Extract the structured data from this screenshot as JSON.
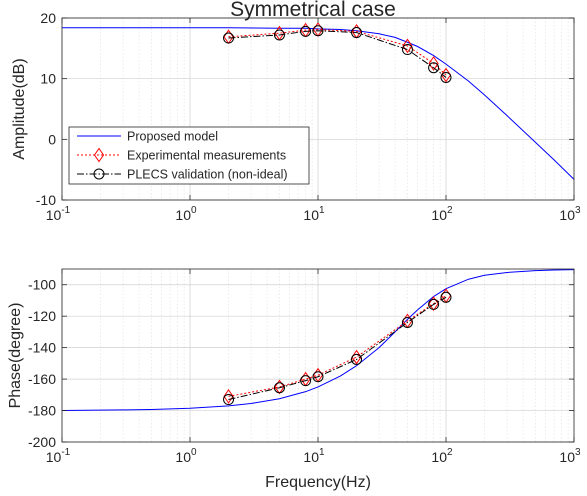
{
  "chart_data": [
    {
      "type": "line",
      "title": "Symmetrical case",
      "xlabel": "",
      "ylabel": "Amplitude(dB)",
      "xscale": "log",
      "xlim": [
        0.1,
        1000
      ],
      "ylim": [
        -10,
        20
      ],
      "grid": true,
      "legend_position": "left",
      "x_tick_labels": [
        [
          "10",
          "-1"
        ],
        [
          "10",
          "0"
        ],
        [
          "10",
          "1"
        ],
        [
          "10",
          "2"
        ],
        [
          "10",
          "3"
        ]
      ],
      "y_ticks": [
        "-10",
        "0",
        "10",
        "20"
      ],
      "series": [
        {
          "name": "Proposed model",
          "color": "#0000ff",
          "style": "solid",
          "x": [
            0.1,
            0.3,
            1,
            2,
            5,
            8,
            10,
            15,
            20,
            30,
            40,
            50,
            60,
            80,
            100,
            150,
            200,
            300,
            500,
            700,
            1000
          ],
          "y": [
            18.4,
            18.4,
            18.4,
            18.4,
            18.3,
            18.3,
            18.2,
            18.1,
            17.9,
            17.4,
            16.8,
            16.0,
            15.3,
            13.8,
            12.4,
            9.6,
            7.3,
            3.9,
            -0.5,
            -3.4,
            -6.6
          ]
        },
        {
          "name": "Experimental measurements",
          "color": "#ff0000",
          "style": "dotted",
          "marker": "diamond",
          "x": [
            2,
            5,
            8,
            10,
            20,
            50,
            80,
            100
          ],
          "y": [
            16.9,
            17.5,
            18.0,
            18.1,
            17.8,
            15.4,
            12.5,
            10.6
          ]
        },
        {
          "name": "PLECS validation (non-ideal)",
          "color": "#000000",
          "style": "dashdot",
          "marker": "circle",
          "x": [
            2,
            5,
            8,
            10,
            20,
            50,
            80,
            100
          ],
          "y": [
            16.7,
            17.2,
            17.8,
            17.9,
            17.6,
            14.8,
            11.8,
            10.2
          ]
        }
      ]
    },
    {
      "type": "line",
      "title": "",
      "xlabel": "Frequency(Hz)",
      "ylabel": "Phase(degree)",
      "xscale": "log",
      "xlim": [
        0.1,
        1000
      ],
      "ylim": [
        -200,
        -90
      ],
      "grid": true,
      "x_tick_labels": [
        [
          "10",
          "-1"
        ],
        [
          "10",
          "0"
        ],
        [
          "10",
          "1"
        ],
        [
          "10",
          "2"
        ],
        [
          "10",
          "3"
        ]
      ],
      "y_ticks": [
        "-200",
        "-180",
        "-160",
        "-140",
        "-120",
        "-100"
      ],
      "series": [
        {
          "name": "Proposed model",
          "color": "#0000ff",
          "style": "solid",
          "x": [
            0.1,
            0.3,
            0.5,
            1,
            2,
            3,
            5,
            8,
            10,
            15,
            20,
            30,
            40,
            50,
            60,
            80,
            100,
            150,
            200,
            300,
            500,
            700,
            1000
          ],
          "y": [
            -180,
            -179.6,
            -179.3,
            -178.5,
            -177.0,
            -175.5,
            -172.5,
            -168.0,
            -165.0,
            -158.0,
            -151.5,
            -140.0,
            -130.0,
            -122.0,
            -116.0,
            -107.5,
            -102.5,
            -96.5,
            -94.0,
            -92.2,
            -91.0,
            -90.6,
            -90.4
          ]
        },
        {
          "name": "Experimental measurements",
          "color": "#ff0000",
          "style": "dotted",
          "marker": "diamond",
          "x": [
            2,
            5,
            8,
            10,
            20,
            50,
            80,
            100
          ],
          "y": [
            -171,
            -165,
            -160,
            -157.5,
            -146,
            -123,
            -112,
            -107
          ]
        },
        {
          "name": "PLECS validation (non-ideal)",
          "color": "#000000",
          "style": "dashdot",
          "marker": "circle",
          "x": [
            2,
            5,
            8,
            10,
            20,
            50,
            80,
            100
          ],
          "y": [
            -173,
            -165.5,
            -161,
            -158.5,
            -147.5,
            -124,
            -112.5,
            -108
          ]
        }
      ]
    }
  ]
}
